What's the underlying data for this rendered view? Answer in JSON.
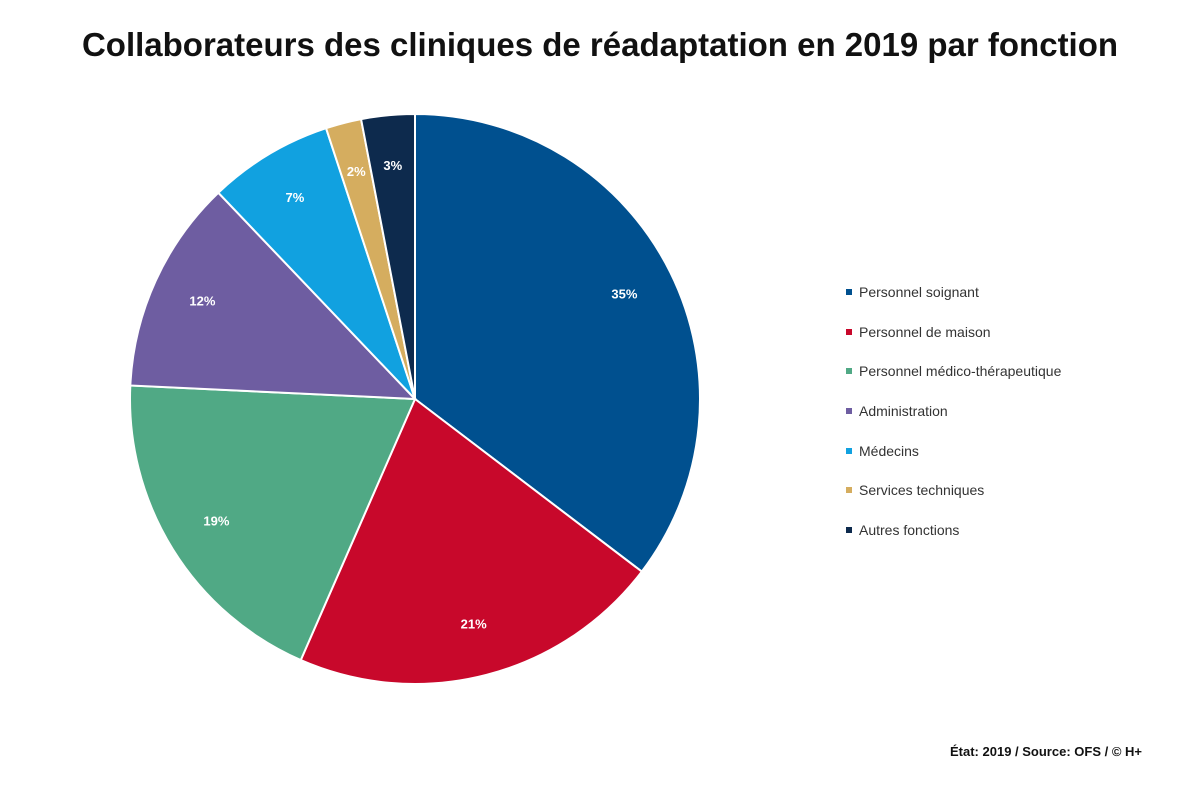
{
  "chart_data": {
    "type": "pie",
    "title": "Collaborateurs des cliniques de réadaptation en 2019 par fonction",
    "slices": [
      {
        "label": "Personnel soignant",
        "value": 35,
        "display": "35%",
        "color": "#00508f"
      },
      {
        "label": "Personnel de maison",
        "value": 21,
        "display": "21%",
        "color": "#c8082b"
      },
      {
        "label": "Personnel médico-thérapeutique",
        "value": 19,
        "display": "19%",
        "color": "#50a985"
      },
      {
        "label": "Administration",
        "value": 12,
        "display": "12%",
        "color": "#6e5da1"
      },
      {
        "label": "Médecins",
        "value": 7,
        "display": "7%",
        "color": "#11a1e0"
      },
      {
        "label": "Services techniques",
        "value": 2,
        "display": "2%",
        "color": "#d5ad5f"
      },
      {
        "label": "Autres fonctions",
        "value": 3,
        "display": "3%",
        "color": "#0d2a4d"
      }
    ],
    "legend_position": "right"
  },
  "footer": {
    "source": "État: 2019 / Source: OFS / © H+"
  }
}
